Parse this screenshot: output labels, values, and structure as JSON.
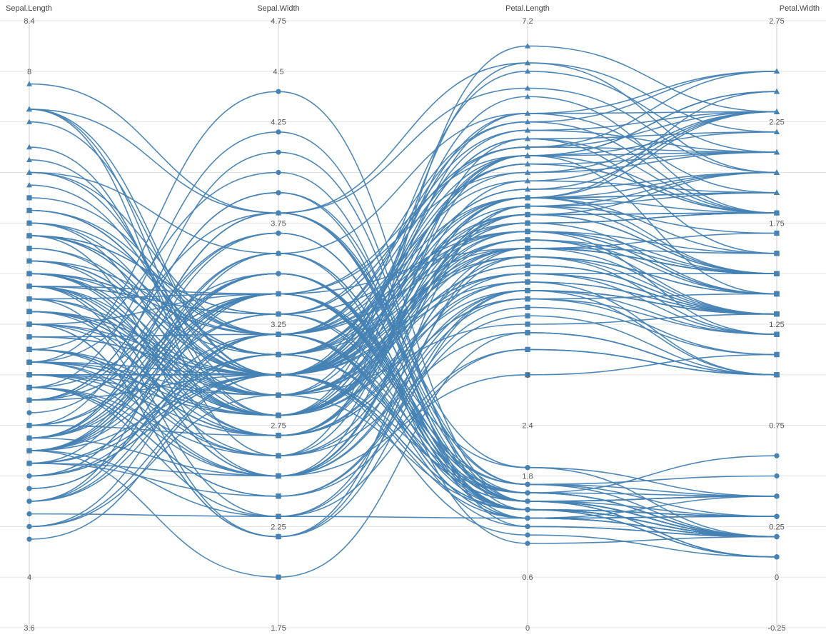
{
  "chart_data": {
    "type": "parallel-coordinates",
    "grid": true,
    "line_color": "#4682b4",
    "axes": [
      {
        "name": "Sepal.Length",
        "min": 3.6,
        "max": 8.4,
        "ticks": [
          "8.4",
          "8",
          "7.6",
          "7.2",
          "6.8",
          "6.4",
          "6",
          "5.6",
          "5.2",
          "4.8",
          "4.4",
          "4",
          "3.6"
        ]
      },
      {
        "name": "Sepal.Width",
        "min": 1.75,
        "max": 4.75,
        "ticks": [
          "4.75",
          "4.5",
          "4.25",
          "4",
          "3.75",
          "3.5",
          "3.25",
          "3",
          "2.75",
          "2.5",
          "2.25",
          "2",
          "1.75"
        ]
      },
      {
        "name": "Petal.Length",
        "min": 0,
        "max": 7.2,
        "ticks": [
          "7.2",
          "6.6",
          "6",
          "5.4",
          "4.8",
          "4.2",
          "3.6",
          "3",
          "2.4",
          "1.8",
          "1.2",
          "0.6",
          "0"
        ]
      },
      {
        "name": "Petal.Width",
        "min": -0.25,
        "max": 2.75,
        "ticks": [
          "2.75",
          "2.5",
          "2.25",
          "2",
          "1.75",
          "1.5",
          "1.25",
          "1",
          "0.75",
          "0.5",
          "0.25",
          "0",
          "-0.25"
        ]
      }
    ],
    "visible_tick_labels": [
      [
        "8.4",
        "8",
        "",
        "",
        "",
        "",
        "",
        "",
        "",
        "",
        "",
        "4",
        "3.6"
      ],
      [
        "4.75",
        "4.5",
        "4.25",
        "",
        "3.75",
        "",
        "3.25",
        "",
        "2.75",
        "",
        "2.25",
        "",
        "1.75"
      ],
      [
        "7.2",
        "",
        "",
        "",
        "",
        "",
        "",
        "3",
        "2.4",
        "1.8",
        "",
        "0.6",
        "0"
      ],
      [
        "2.75",
        "",
        "2.25",
        "",
        "1.75",
        "",
        "1.25",
        "",
        "0.75",
        "",
        "0.25",
        "0",
        "-0.25"
      ]
    ],
    "species": [
      {
        "symbol": "circle",
        "records": [
          [
            5.1,
            3.5,
            1.4,
            0.2
          ],
          [
            4.9,
            3.0,
            1.4,
            0.2
          ],
          [
            4.7,
            3.2,
            1.3,
            0.2
          ],
          [
            4.6,
            3.1,
            1.5,
            0.2
          ],
          [
            5.0,
            3.6,
            1.4,
            0.2
          ],
          [
            5.4,
            3.9,
            1.7,
            0.4
          ],
          [
            4.6,
            3.4,
            1.4,
            0.3
          ],
          [
            5.0,
            3.4,
            1.5,
            0.2
          ],
          [
            4.4,
            2.9,
            1.4,
            0.2
          ],
          [
            4.9,
            3.1,
            1.5,
            0.1
          ],
          [
            5.4,
            3.7,
            1.5,
            0.2
          ],
          [
            4.8,
            3.4,
            1.6,
            0.2
          ],
          [
            4.8,
            3.0,
            1.4,
            0.1
          ],
          [
            4.3,
            3.0,
            1.1,
            0.1
          ],
          [
            5.8,
            4.0,
            1.2,
            0.2
          ],
          [
            5.7,
            4.4,
            1.5,
            0.4
          ],
          [
            5.4,
            3.9,
            1.3,
            0.4
          ],
          [
            5.1,
            3.5,
            1.4,
            0.3
          ],
          [
            5.7,
            3.8,
            1.7,
            0.3
          ],
          [
            5.1,
            3.8,
            1.5,
            0.3
          ],
          [
            5.4,
            3.4,
            1.7,
            0.2
          ],
          [
            5.1,
            3.7,
            1.5,
            0.4
          ],
          [
            4.6,
            3.6,
            1.0,
            0.2
          ],
          [
            5.1,
            3.3,
            1.7,
            0.5
          ],
          [
            4.8,
            3.4,
            1.9,
            0.2
          ],
          [
            5.0,
            3.0,
            1.6,
            0.2
          ],
          [
            5.0,
            3.4,
            1.6,
            0.4
          ],
          [
            5.2,
            3.5,
            1.5,
            0.2
          ],
          [
            5.2,
            3.4,
            1.4,
            0.2
          ],
          [
            4.7,
            3.2,
            1.6,
            0.2
          ],
          [
            4.8,
            3.1,
            1.6,
            0.2
          ],
          [
            5.4,
            3.4,
            1.5,
            0.4
          ],
          [
            5.2,
            4.1,
            1.5,
            0.1
          ],
          [
            5.5,
            4.2,
            1.4,
            0.2
          ],
          [
            4.9,
            3.1,
            1.5,
            0.2
          ],
          [
            5.0,
            3.2,
            1.2,
            0.2
          ],
          [
            5.5,
            3.5,
            1.3,
            0.2
          ],
          [
            4.9,
            3.6,
            1.4,
            0.1
          ],
          [
            4.4,
            3.0,
            1.3,
            0.2
          ],
          [
            5.1,
            3.4,
            1.5,
            0.2
          ],
          [
            5.0,
            3.5,
            1.3,
            0.3
          ],
          [
            4.5,
            2.3,
            1.3,
            0.3
          ],
          [
            4.4,
            3.2,
            1.3,
            0.2
          ],
          [
            5.0,
            3.5,
            1.6,
            0.6
          ],
          [
            5.1,
            3.8,
            1.9,
            0.4
          ],
          [
            4.8,
            3.0,
            1.4,
            0.3
          ],
          [
            5.1,
            3.8,
            1.6,
            0.2
          ],
          [
            4.6,
            3.2,
            1.4,
            0.2
          ],
          [
            5.3,
            3.7,
            1.5,
            0.2
          ],
          [
            5.0,
            3.3,
            1.4,
            0.2
          ]
        ]
      },
      {
        "symbol": "square",
        "records": [
          [
            7.0,
            3.2,
            4.7,
            1.4
          ],
          [
            6.4,
            3.2,
            4.5,
            1.5
          ],
          [
            6.9,
            3.1,
            4.9,
            1.5
          ],
          [
            5.5,
            2.3,
            4.0,
            1.3
          ],
          [
            6.5,
            2.8,
            4.6,
            1.5
          ],
          [
            5.7,
            2.8,
            4.5,
            1.3
          ],
          [
            6.3,
            3.3,
            4.7,
            1.6
          ],
          [
            4.9,
            2.4,
            3.3,
            1.0
          ],
          [
            6.6,
            2.9,
            4.6,
            1.3
          ],
          [
            5.2,
            2.7,
            3.9,
            1.4
          ],
          [
            5.0,
            2.0,
            3.5,
            1.0
          ],
          [
            5.9,
            3.0,
            4.2,
            1.5
          ],
          [
            6.0,
            2.2,
            4.0,
            1.0
          ],
          [
            6.1,
            2.9,
            4.7,
            1.4
          ],
          [
            5.6,
            2.9,
            3.6,
            1.3
          ],
          [
            6.7,
            3.1,
            4.4,
            1.4
          ],
          [
            5.6,
            3.0,
            4.5,
            1.5
          ],
          [
            5.8,
            2.7,
            4.1,
            1.0
          ],
          [
            6.2,
            2.2,
            4.5,
            1.5
          ],
          [
            5.6,
            2.5,
            3.9,
            1.1
          ],
          [
            5.9,
            3.2,
            4.8,
            1.8
          ],
          [
            6.1,
            2.8,
            4.0,
            1.3
          ],
          [
            6.3,
            2.5,
            4.9,
            1.5
          ],
          [
            6.1,
            2.8,
            4.7,
            1.2
          ],
          [
            6.4,
            2.9,
            4.3,
            1.3
          ],
          [
            6.6,
            3.0,
            4.4,
            1.4
          ],
          [
            6.8,
            2.8,
            4.8,
            1.4
          ],
          [
            6.7,
            3.0,
            5.0,
            1.7
          ],
          [
            6.0,
            2.9,
            4.5,
            1.5
          ],
          [
            5.7,
            2.6,
            3.5,
            1.0
          ],
          [
            5.5,
            2.4,
            3.8,
            1.1
          ],
          [
            5.5,
            2.4,
            3.7,
            1.0
          ],
          [
            5.8,
            2.7,
            3.9,
            1.2
          ],
          [
            6.0,
            2.7,
            5.1,
            1.6
          ],
          [
            5.4,
            3.0,
            4.5,
            1.5
          ],
          [
            6.0,
            3.4,
            4.5,
            1.6
          ],
          [
            6.7,
            3.1,
            4.7,
            1.5
          ],
          [
            6.3,
            2.3,
            4.4,
            1.3
          ],
          [
            5.6,
            3.0,
            4.1,
            1.3
          ],
          [
            5.5,
            2.5,
            4.0,
            1.3
          ],
          [
            5.5,
            2.6,
            4.4,
            1.2
          ],
          [
            6.1,
            3.0,
            4.6,
            1.4
          ],
          [
            5.8,
            2.6,
            4.0,
            1.2
          ],
          [
            5.0,
            2.3,
            3.3,
            1.0
          ],
          [
            5.6,
            2.7,
            4.2,
            1.3
          ],
          [
            5.7,
            3.0,
            4.2,
            1.2
          ],
          [
            5.7,
            2.9,
            4.2,
            1.3
          ],
          [
            6.2,
            2.9,
            4.3,
            1.3
          ],
          [
            5.1,
            2.5,
            3.0,
            1.1
          ],
          [
            5.7,
            2.8,
            4.1,
            1.3
          ]
        ]
      },
      {
        "symbol": "triangle",
        "records": [
          [
            6.3,
            3.3,
            6.0,
            2.5
          ],
          [
            5.8,
            2.7,
            5.1,
            1.9
          ],
          [
            7.1,
            3.0,
            5.9,
            2.1
          ],
          [
            6.3,
            2.9,
            5.6,
            1.8
          ],
          [
            6.5,
            3.0,
            5.8,
            2.2
          ],
          [
            7.6,
            3.0,
            6.6,
            2.1
          ],
          [
            4.9,
            2.5,
            4.5,
            1.7
          ],
          [
            7.3,
            2.9,
            6.3,
            1.8
          ],
          [
            6.7,
            2.5,
            5.8,
            1.8
          ],
          [
            7.2,
            3.6,
            6.1,
            2.5
          ],
          [
            6.5,
            3.2,
            5.1,
            2.0
          ],
          [
            6.4,
            2.7,
            5.3,
            1.9
          ],
          [
            6.8,
            3.0,
            5.5,
            2.1
          ],
          [
            5.7,
            2.5,
            5.0,
            2.0
          ],
          [
            5.8,
            2.8,
            5.1,
            2.4
          ],
          [
            6.4,
            3.2,
            5.3,
            2.3
          ],
          [
            6.5,
            3.0,
            5.5,
            1.8
          ],
          [
            7.7,
            3.8,
            6.7,
            2.2
          ],
          [
            7.7,
            2.6,
            6.9,
            2.3
          ],
          [
            6.0,
            2.2,
            5.0,
            1.5
          ],
          [
            6.9,
            3.2,
            5.7,
            2.3
          ],
          [
            5.6,
            2.8,
            4.9,
            2.0
          ],
          [
            7.7,
            2.8,
            6.7,
            2.0
          ],
          [
            6.3,
            2.7,
            4.9,
            1.8
          ],
          [
            6.7,
            3.3,
            5.7,
            2.1
          ],
          [
            7.2,
            3.2,
            6.0,
            1.8
          ],
          [
            6.2,
            2.8,
            4.8,
            1.8
          ],
          [
            6.1,
            3.0,
            4.9,
            1.8
          ],
          [
            6.4,
            2.8,
            5.6,
            2.1
          ],
          [
            7.2,
            3.0,
            5.8,
            1.6
          ],
          [
            7.4,
            2.8,
            6.1,
            1.9
          ],
          [
            7.9,
            3.8,
            6.4,
            2.0
          ],
          [
            6.4,
            2.8,
            5.6,
            2.2
          ],
          [
            6.3,
            2.8,
            5.1,
            1.5
          ],
          [
            6.1,
            2.6,
            5.6,
            1.4
          ],
          [
            7.7,
            3.0,
            6.1,
            2.3
          ],
          [
            6.3,
            3.4,
            5.6,
            2.4
          ],
          [
            6.4,
            3.1,
            5.5,
            1.8
          ],
          [
            6.0,
            3.0,
            4.8,
            1.8
          ],
          [
            6.9,
            3.1,
            5.4,
            2.1
          ],
          [
            6.7,
            3.1,
            5.6,
            2.4
          ],
          [
            6.9,
            3.1,
            5.1,
            2.3
          ],
          [
            5.8,
            2.7,
            5.1,
            1.9
          ],
          [
            6.8,
            3.2,
            5.9,
            2.3
          ],
          [
            6.7,
            3.3,
            5.7,
            2.5
          ],
          [
            6.7,
            3.0,
            5.2,
            2.3
          ],
          [
            6.3,
            2.5,
            5.0,
            1.9
          ],
          [
            6.5,
            3.0,
            5.2,
            2.0
          ],
          [
            6.2,
            3.4,
            5.4,
            2.3
          ],
          [
            5.9,
            3.0,
            5.1,
            1.8
          ]
        ]
      }
    ]
  }
}
